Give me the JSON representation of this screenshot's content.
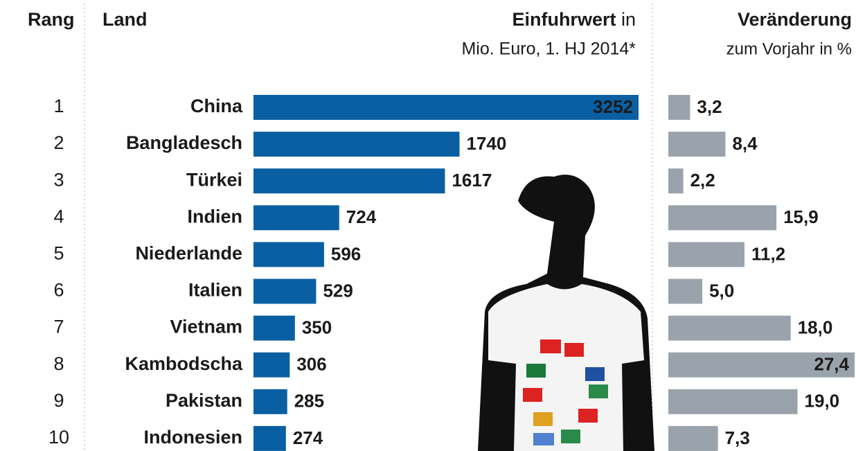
{
  "chart_data": {
    "type": "bar",
    "rank_header": "Rang",
    "category_header": "Land",
    "ranks": [
      1,
      2,
      3,
      4,
      5,
      6,
      7,
      8,
      9,
      10
    ],
    "categories": [
      "China",
      "Bangladesch",
      "Türkei",
      "Indien",
      "Niederlande",
      "Italien",
      "Vietnam",
      "Kambodscha",
      "Pakistan",
      "Indonesien"
    ],
    "series": [
      {
        "name": "Einfuhrwert",
        "name_rest": "in",
        "subtitle": "Mio. Euro, 1. HJ 2014*",
        "color": "#0a5fa3",
        "values": [
          3252,
          1740,
          1617,
          724,
          596,
          529,
          350,
          306,
          285,
          274
        ]
      },
      {
        "name": "Veränderung",
        "subtitle": "zum Vorjahr in %",
        "color": "#9aa3ab",
        "values": [
          3.2,
          8.4,
          2.2,
          15.9,
          11.2,
          5.0,
          18.0,
          27.4,
          19.0,
          7.3
        ],
        "value_labels": [
          "3,2",
          "8,4",
          "2,2",
          "15,9",
          "11,2",
          "5,0",
          "18,0",
          "27,4",
          "19,0",
          "7,3"
        ]
      }
    ]
  }
}
